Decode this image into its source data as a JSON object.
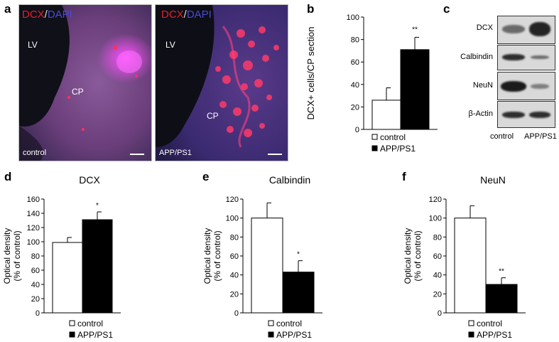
{
  "panel_labels": [
    "a",
    "b",
    "c",
    "d",
    "e",
    "f"
  ],
  "panel_a": {
    "stain": {
      "dcx": "DCX",
      "slash": "/",
      "dapi": "DAPI"
    },
    "left": {
      "lv": "LV",
      "cp": "CP",
      "condition": "control"
    },
    "right": {
      "lv": "LV",
      "cp": "CP",
      "condition": "APP/PS1"
    }
  },
  "panel_c": {
    "labels": [
      "DCX",
      "Calbindin",
      "NeuN",
      "β-Actin"
    ],
    "lanes": [
      "control",
      "APP/PS1"
    ]
  },
  "chart_data": [
    {
      "panel": "b",
      "type": "bar",
      "categories": [
        "control",
        "APP/PS1"
      ],
      "values": [
        26,
        71
      ],
      "errors": [
        11,
        11
      ],
      "colors": [
        "#ffffff",
        "#000000"
      ],
      "significance": [
        "",
        "**"
      ],
      "title": "",
      "ylabel": "DCX+ cells/CP section",
      "ylim": [
        0,
        100
      ],
      "yticks": [
        0,
        20,
        40,
        60,
        80,
        100
      ],
      "legend": [
        "control",
        "APP/PS1"
      ]
    },
    {
      "panel": "d",
      "type": "bar",
      "categories": [
        "control",
        "APP/PS1"
      ],
      "values": [
        99,
        131
      ],
      "errors": [
        7,
        11
      ],
      "colors": [
        "#ffffff",
        "#000000"
      ],
      "significance": [
        "",
        "*"
      ],
      "title": "DCX",
      "ylabel": "Optical density (% of control)",
      "ylim": [
        0,
        160
      ],
      "yticks": [
        0,
        20,
        40,
        60,
        80,
        100,
        120,
        140,
        160
      ],
      "legend": [
        "control",
        "APP/PS1"
      ]
    },
    {
      "panel": "e",
      "type": "bar",
      "categories": [
        "control",
        "APP/PS1"
      ],
      "values": [
        100,
        43
      ],
      "errors": [
        16,
        12
      ],
      "colors": [
        "#ffffff",
        "#000000"
      ],
      "significance": [
        "",
        "*"
      ],
      "title": "Calbindin",
      "ylabel": "Optical density (% of control)",
      "ylim": [
        0,
        120
      ],
      "yticks": [
        0,
        20,
        40,
        60,
        80,
        100,
        120
      ],
      "legend": [
        "control",
        "APP/PS1"
      ]
    },
    {
      "panel": "f",
      "type": "bar",
      "categories": [
        "control",
        "APP/PS1"
      ],
      "values": [
        100,
        30
      ],
      "errors": [
        13,
        7
      ],
      "colors": [
        "#ffffff",
        "#000000"
      ],
      "significance": [
        "",
        "**"
      ],
      "title": "NeuN",
      "ylabel": "Optical density (% of control)",
      "ylim": [
        0,
        120
      ],
      "yticks": [
        0,
        20,
        40,
        60,
        80,
        100,
        120
      ],
      "legend": [
        "control",
        "APP/PS1"
      ]
    }
  ]
}
